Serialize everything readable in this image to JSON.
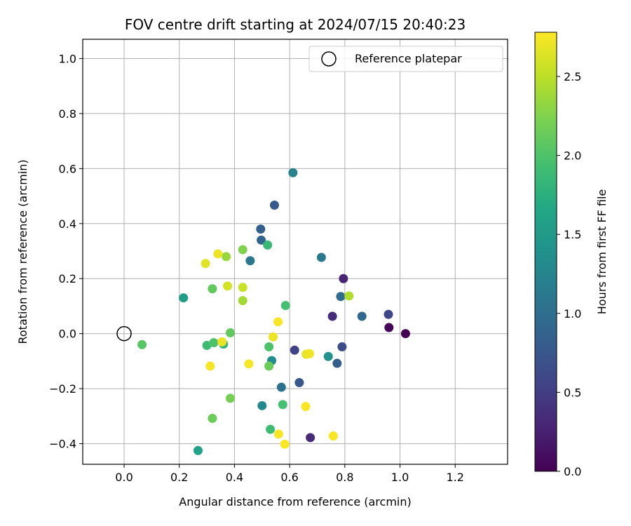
{
  "chart_data": {
    "type": "scatter",
    "title": "FOV centre drift starting at 2024/07/15 20:40:23",
    "xlabel": "Angular distance from reference (arcmin)",
    "ylabel": "Rotation from reference (arcmin)",
    "xlim": [
      -0.15,
      1.39
    ],
    "ylim": [
      -0.475,
      1.07
    ],
    "xticks": [
      0.0,
      0.2,
      0.4,
      0.6,
      0.8,
      1.0,
      1.2
    ],
    "xtick_labels": [
      "0.0",
      "0.2",
      "0.4",
      "0.6",
      "0.8",
      "1.0",
      "1.2"
    ],
    "yticks": [
      -0.4,
      -0.2,
      0.0,
      0.2,
      0.4,
      0.6,
      0.8,
      1.0
    ],
    "ytick_labels": [
      "−0.4",
      "−0.2",
      "0.0",
      "0.2",
      "0.4",
      "0.6",
      "0.8",
      "1.0"
    ],
    "grid": true,
    "legend": {
      "location": "top-right",
      "entries": [
        "Reference platepar"
      ]
    },
    "reference_point": {
      "x": 0.0,
      "y": 0.0
    },
    "colorbar": {
      "label": "Hours from first FF file",
      "colormap": "viridis",
      "range": [
        0.0,
        2.78
      ],
      "ticks": [
        0.0,
        0.5,
        1.0,
        1.5,
        2.0,
        2.5
      ],
      "tick_labels": [
        "0.0",
        "0.5",
        "1.0",
        "1.5",
        "2.0",
        "2.5"
      ]
    },
    "points": [
      {
        "x": 1.02,
        "y": 0.0,
        "hours": 0.0
      },
      {
        "x": 0.96,
        "y": 0.022,
        "hours": 0.05
      },
      {
        "x": 0.795,
        "y": 0.2,
        "hours": 0.28
      },
      {
        "x": 0.675,
        "y": -0.378,
        "hours": 0.33
      },
      {
        "x": 0.755,
        "y": 0.063,
        "hours": 0.36
      },
      {
        "x": 0.958,
        "y": 0.07,
        "hours": 0.6
      },
      {
        "x": 0.79,
        "y": -0.048,
        "hours": 0.65
      },
      {
        "x": 0.618,
        "y": -0.06,
        "hours": 0.55
      },
      {
        "x": 0.635,
        "y": -0.178,
        "hours": 0.75
      },
      {
        "x": 0.545,
        "y": 0.467,
        "hours": 0.78
      },
      {
        "x": 0.772,
        "y": -0.108,
        "hours": 0.8
      },
      {
        "x": 0.495,
        "y": 0.38,
        "hours": 0.85
      },
      {
        "x": 0.497,
        "y": 0.34,
        "hours": 0.9
      },
      {
        "x": 0.862,
        "y": 0.063,
        "hours": 0.95
      },
      {
        "x": 0.785,
        "y": 0.135,
        "hours": 0.98
      },
      {
        "x": 0.57,
        "y": -0.195,
        "hours": 1.05
      },
      {
        "x": 0.457,
        "y": 0.265,
        "hours": 1.1
      },
      {
        "x": 0.715,
        "y": 0.277,
        "hours": 1.12
      },
      {
        "x": 0.612,
        "y": 0.585,
        "hours": 1.22
      },
      {
        "x": 0.5,
        "y": -0.262,
        "hours": 1.3
      },
      {
        "x": 0.535,
        "y": -0.098,
        "hours": 1.35
      },
      {
        "x": 0.74,
        "y": -0.083,
        "hours": 1.4
      },
      {
        "x": 0.215,
        "y": 0.13,
        "hours": 1.55
      },
      {
        "x": 0.268,
        "y": -0.425,
        "hours": 1.6
      },
      {
        "x": 0.36,
        "y": -0.038,
        "hours": 1.8
      },
      {
        "x": 0.52,
        "y": 0.322,
        "hours": 1.85
      },
      {
        "x": 0.3,
        "y": -0.043,
        "hours": 1.9
      },
      {
        "x": 0.53,
        "y": -0.348,
        "hours": 1.9
      },
      {
        "x": 0.575,
        "y": -0.258,
        "hours": 1.95
      },
      {
        "x": 0.585,
        "y": 0.102,
        "hours": 1.95
      },
      {
        "x": 0.325,
        "y": -0.033,
        "hours": 2.0
      },
      {
        "x": 0.525,
        "y": -0.048,
        "hours": 2.0
      },
      {
        "x": 0.065,
        "y": -0.04,
        "hours": 2.05
      },
      {
        "x": 0.32,
        "y": 0.163,
        "hours": 2.1
      },
      {
        "x": 0.385,
        "y": 0.003,
        "hours": 2.1
      },
      {
        "x": 0.32,
        "y": -0.308,
        "hours": 2.15
      },
      {
        "x": 0.525,
        "y": -0.118,
        "hours": 2.15
      },
      {
        "x": 0.385,
        "y": -0.235,
        "hours": 2.2
      },
      {
        "x": 0.43,
        "y": 0.305,
        "hours": 2.25
      },
      {
        "x": 0.37,
        "y": 0.28,
        "hours": 2.35
      },
      {
        "x": 0.43,
        "y": 0.12,
        "hours": 2.4
      },
      {
        "x": 0.815,
        "y": 0.137,
        "hours": 2.45
      },
      {
        "x": 0.43,
        "y": 0.168,
        "hours": 2.55
      },
      {
        "x": 0.375,
        "y": 0.173,
        "hours": 2.6
      },
      {
        "x": 0.295,
        "y": 0.255,
        "hours": 2.65
      },
      {
        "x": 0.34,
        "y": 0.29,
        "hours": 2.7
      },
      {
        "x": 0.355,
        "y": -0.03,
        "hours": 2.7
      },
      {
        "x": 0.54,
        "y": -0.012,
        "hours": 2.7
      },
      {
        "x": 0.66,
        "y": -0.075,
        "hours": 2.68
      },
      {
        "x": 0.672,
        "y": -0.073,
        "hours": 2.72
      },
      {
        "x": 0.558,
        "y": 0.043,
        "hours": 2.75
      },
      {
        "x": 0.312,
        "y": -0.118,
        "hours": 2.75
      },
      {
        "x": 0.452,
        "y": -0.11,
        "hours": 2.75
      },
      {
        "x": 0.658,
        "y": -0.265,
        "hours": 2.75
      },
      {
        "x": 0.56,
        "y": -0.365,
        "hours": 2.76
      },
      {
        "x": 0.758,
        "y": -0.372,
        "hours": 2.76
      },
      {
        "x": 0.582,
        "y": -0.402,
        "hours": 2.77
      }
    ]
  }
}
